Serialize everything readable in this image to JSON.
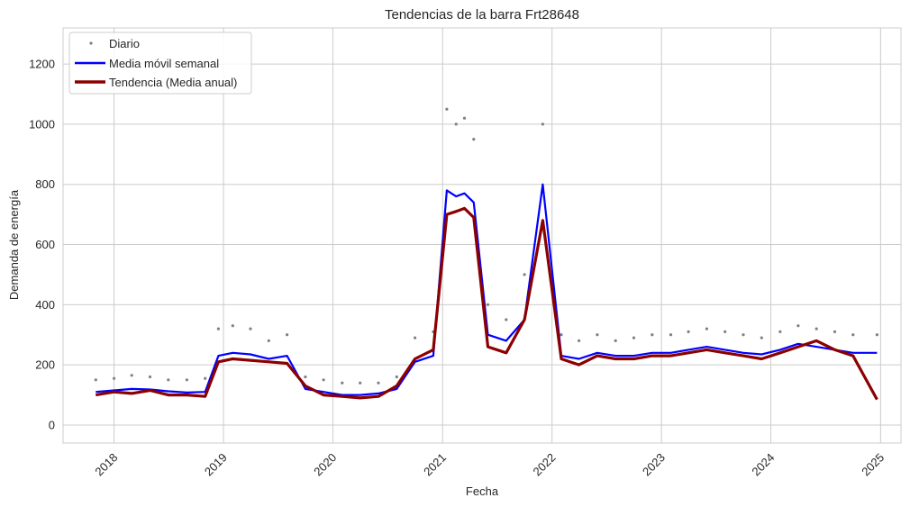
{
  "chart_data": {
    "type": "line",
    "title": "Tendencias de la barra Frt28648",
    "xlabel": "Fecha",
    "ylabel": "Demanda de energía",
    "xlim": [
      "2017-07-15",
      "2025-03-10"
    ],
    "ylim": [
      -60,
      1320
    ],
    "x_ticks": [
      "2018",
      "2019",
      "2020",
      "2021",
      "2022",
      "2023",
      "2024",
      "2025"
    ],
    "y_ticks": [
      0,
      200,
      400,
      600,
      800,
      1000,
      1200
    ],
    "grid": true,
    "legend_position": "top-left",
    "colors": {
      "daily": "#808080",
      "weekly": "#0000ff",
      "trend": "#8b0000",
      "grid": "#cccccc",
      "frame": "#cccccc"
    },
    "series": [
      {
        "name": "Diario",
        "style": "scatter",
        "x": [
          "2017-11-01",
          "2018-01-01",
          "2018-03-01",
          "2018-05-01",
          "2018-07-01",
          "2018-09-01",
          "2018-11-01",
          "2018-12-15",
          "2019-02-01",
          "2019-04-01",
          "2019-06-01",
          "2019-08-01",
          "2019-10-01",
          "2019-12-01",
          "2020-02-01",
          "2020-04-01",
          "2020-06-01",
          "2020-08-01",
          "2020-10-01",
          "2020-12-01",
          "2021-01-15",
          "2021-02-15",
          "2021-03-15",
          "2021-04-15",
          "2021-06-01",
          "2021-08-01",
          "2021-10-01",
          "2021-12-01",
          "2022-02-01",
          "2022-04-01",
          "2022-06-01",
          "2022-08-01",
          "2022-10-01",
          "2022-12-01",
          "2023-02-01",
          "2023-04-01",
          "2023-06-01",
          "2023-08-01",
          "2023-10-01",
          "2023-12-01",
          "2024-02-01",
          "2024-04-01",
          "2024-06-01",
          "2024-08-01",
          "2024-10-01",
          "2024-12-20"
        ],
        "values": [
          150,
          155,
          165,
          160,
          150,
          150,
          155,
          320,
          330,
          320,
          280,
          300,
          160,
          150,
          140,
          140,
          140,
          160,
          290,
          310,
          1050,
          1000,
          1020,
          950,
          400,
          350,
          500,
          1000,
          300,
          280,
          300,
          280,
          290,
          300,
          300,
          310,
          320,
          310,
          300,
          290,
          310,
          330,
          320,
          310,
          300,
          300
        ]
      },
      {
        "name": "Media móvil semanal",
        "style": "line",
        "x": [
          "2017-11-01",
          "2018-01-01",
          "2018-03-01",
          "2018-05-01",
          "2018-07-01",
          "2018-09-01",
          "2018-11-01",
          "2018-12-15",
          "2019-02-01",
          "2019-04-01",
          "2019-06-01",
          "2019-08-01",
          "2019-10-01",
          "2019-12-01",
          "2020-02-01",
          "2020-04-01",
          "2020-06-01",
          "2020-08-01",
          "2020-10-01",
          "2020-12-01",
          "2021-01-15",
          "2021-02-15",
          "2021-03-15",
          "2021-04-15",
          "2021-06-01",
          "2021-08-01",
          "2021-10-01",
          "2021-12-01",
          "2022-02-01",
          "2022-04-01",
          "2022-06-01",
          "2022-08-01",
          "2022-10-01",
          "2022-12-01",
          "2023-02-01",
          "2023-04-01",
          "2023-06-01",
          "2023-08-01",
          "2023-10-01",
          "2023-12-01",
          "2024-02-01",
          "2024-04-01",
          "2024-06-01",
          "2024-08-01",
          "2024-10-01",
          "2024-12-20"
        ],
        "values": [
          110,
          115,
          120,
          118,
          112,
          108,
          110,
          230,
          240,
          235,
          220,
          230,
          120,
          110,
          100,
          100,
          105,
          120,
          210,
          230,
          780,
          760,
          770,
          740,
          300,
          280,
          350,
          800,
          230,
          220,
          240,
          230,
          230,
          240,
          240,
          250,
          260,
          250,
          240,
          235,
          250,
          270,
          260,
          250,
          240,
          240
        ]
      },
      {
        "name": "Tendencia (Media anual)",
        "style": "line",
        "x": [
          "2017-11-01",
          "2018-01-01",
          "2018-03-01",
          "2018-05-01",
          "2018-07-01",
          "2018-09-01",
          "2018-11-01",
          "2018-12-15",
          "2019-02-01",
          "2019-04-01",
          "2019-06-01",
          "2019-08-01",
          "2019-10-01",
          "2019-12-01",
          "2020-02-01",
          "2020-04-01",
          "2020-06-01",
          "2020-08-01",
          "2020-10-01",
          "2020-12-01",
          "2021-01-15",
          "2021-02-15",
          "2021-03-15",
          "2021-04-15",
          "2021-06-01",
          "2021-08-01",
          "2021-10-01",
          "2021-12-01",
          "2022-02-01",
          "2022-04-01",
          "2022-06-01",
          "2022-08-01",
          "2022-10-01",
          "2022-12-01",
          "2023-02-01",
          "2023-04-01",
          "2023-06-01",
          "2023-08-01",
          "2023-10-01",
          "2023-12-01",
          "2024-02-01",
          "2024-04-01",
          "2024-06-01",
          "2024-08-01",
          "2024-10-01",
          "2024-12-20"
        ],
        "values": [
          100,
          110,
          105,
          115,
          100,
          100,
          95,
          210,
          220,
          215,
          210,
          205,
          130,
          100,
          95,
          90,
          95,
          130,
          220,
          250,
          700,
          710,
          720,
          690,
          260,
          240,
          350,
          680,
          220,
          200,
          230,
          220,
          220,
          230,
          230,
          240,
          250,
          240,
          230,
          220,
          240,
          260,
          280,
          250,
          230,
          85
        ]
      }
    ]
  }
}
